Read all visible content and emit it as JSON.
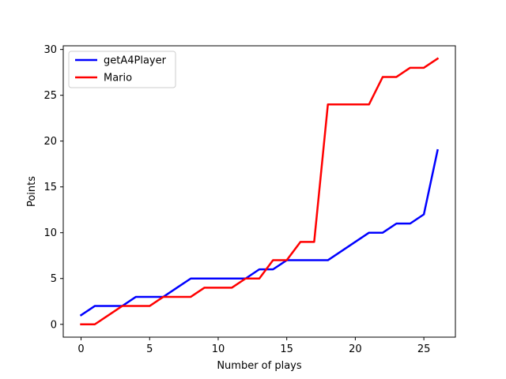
{
  "chart_data": {
    "type": "line",
    "title": "",
    "xlabel": "Number of plays",
    "ylabel": "Points",
    "xlim": [
      -1.3,
      27.3
    ],
    "ylim": [
      -1.4,
      30.4
    ],
    "xticks": [
      0,
      5,
      10,
      15,
      20,
      25
    ],
    "yticks": [
      0,
      5,
      10,
      15,
      20,
      25,
      30
    ],
    "grid": false,
    "legend_position": "top-left",
    "x": [
      0,
      1,
      2,
      3,
      4,
      5,
      6,
      7,
      8,
      9,
      10,
      11,
      12,
      13,
      14,
      15,
      16,
      17,
      18,
      19,
      20,
      21,
      22,
      23,
      24,
      25,
      26
    ],
    "series": [
      {
        "name": "getA4Player",
        "color": "#0000ff",
        "values": [
          1,
          2,
          2,
          2,
          3,
          3,
          3,
          4,
          5,
          5,
          5,
          5,
          5,
          6,
          6,
          7,
          7,
          7,
          7,
          8,
          9,
          10,
          10,
          11,
          11,
          12,
          19
        ]
      },
      {
        "name": "Mario",
        "color": "#ff0000",
        "values": [
          0,
          0,
          1,
          2,
          2,
          2,
          3,
          3,
          3,
          4,
          4,
          4,
          5,
          5,
          7,
          7,
          9,
          9,
          24,
          24,
          24,
          24,
          27,
          27,
          28,
          28,
          29
        ]
      }
    ]
  }
}
